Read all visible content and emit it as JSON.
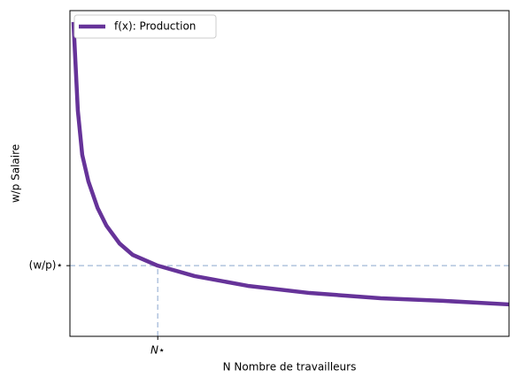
{
  "chart_data": {
    "type": "line",
    "xlabel": "N Nombre de travailleurs",
    "ylabel": "w/p Salaire",
    "x": [
      0.08,
      0.18,
      0.28,
      0.42,
      0.63,
      0.83,
      1.13,
      1.43,
      2.0,
      2.84,
      4.05,
      5.46,
      7.08,
      8.49,
      10.0
    ],
    "series": [
      {
        "name": "f(x): Production",
        "color": "#663399",
        "values": [
          9.65,
          6.93,
          5.57,
          4.76,
          3.94,
          3.4,
          2.85,
          2.5,
          2.17,
          1.85,
          1.55,
          1.33,
          1.17,
          1.09,
          0.98
        ]
      }
    ],
    "xlim": [
      0,
      10
    ],
    "ylim": [
      0,
      10
    ],
    "xticks": [
      {
        "value": 2.0,
        "label": "N⋆"
      }
    ],
    "yticks": [
      {
        "value": 2.17,
        "label": "(w/p)⋆"
      }
    ],
    "guide_color": "#b0c4de",
    "legend": "upper left"
  }
}
